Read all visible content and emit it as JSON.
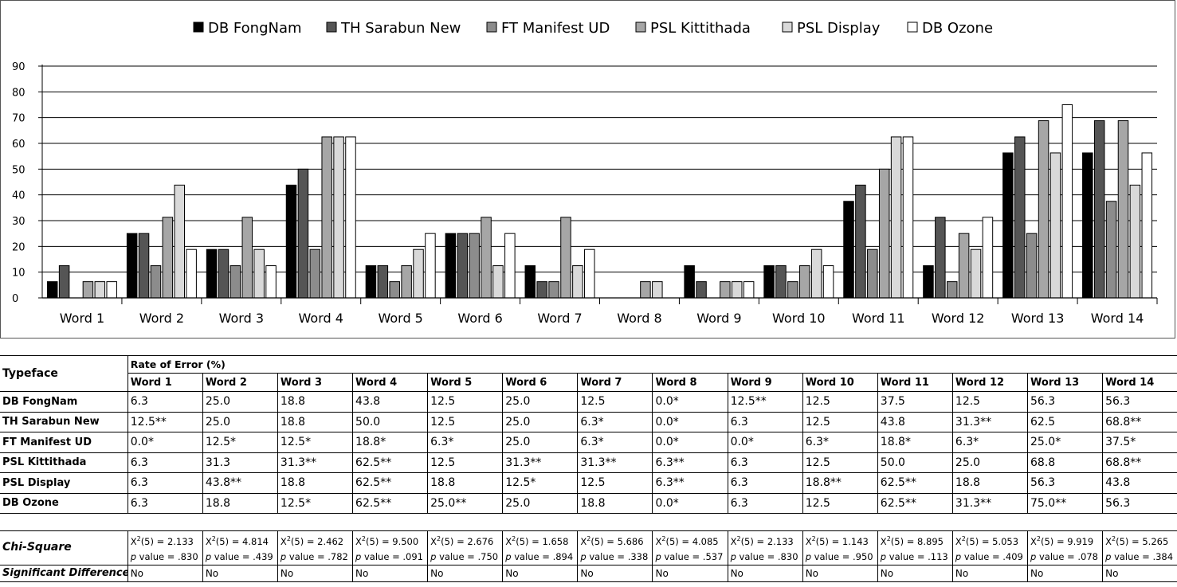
{
  "chart_data": {
    "type": "bar",
    "categories": [
      "Word 1",
      "Word 2",
      "Word 3",
      "Word 4",
      "Word 5",
      "Word 6",
      "Word 7",
      "Word 8",
      "Word 9",
      "Word 10",
      "Word 11",
      "Word 12",
      "Word 13",
      "Word 14"
    ],
    "series": [
      {
        "name": "DB FongNam",
        "color": "#000000",
        "values": [
          6.3,
          25.0,
          18.8,
          43.8,
          12.5,
          25.0,
          12.5,
          0.0,
          12.5,
          12.5,
          37.5,
          12.5,
          56.3,
          56.3
        ]
      },
      {
        "name": "TH Sarabun New",
        "color": "#555555",
        "values": [
          12.5,
          25.0,
          18.8,
          50.0,
          12.5,
          25.0,
          6.3,
          0.0,
          6.3,
          12.5,
          43.8,
          31.3,
          62.5,
          68.8
        ]
      },
      {
        "name": "FT Manifest UD",
        "color": "#8c8c8c",
        "values": [
          0.0,
          12.5,
          12.5,
          18.8,
          6.3,
          25.0,
          6.3,
          0.0,
          0.0,
          6.3,
          18.8,
          6.3,
          25.0,
          37.5
        ]
      },
      {
        "name": "PSL Kittithada",
        "color": "#a6a6a6",
        "values": [
          6.3,
          31.3,
          31.3,
          62.5,
          12.5,
          31.3,
          31.3,
          6.3,
          6.3,
          12.5,
          50.0,
          25.0,
          68.8,
          68.8
        ]
      },
      {
        "name": "PSL Display",
        "color": "#d9d9d9",
        "values": [
          6.3,
          43.8,
          18.8,
          62.5,
          18.8,
          12.5,
          12.5,
          6.3,
          6.3,
          18.8,
          62.5,
          18.8,
          56.3,
          43.8
        ]
      },
      {
        "name": "DB Ozone",
        "color": "#ffffff",
        "values": [
          6.3,
          18.8,
          12.5,
          62.5,
          25.0,
          25.0,
          18.8,
          0.0,
          6.3,
          12.5,
          62.5,
          31.3,
          75.0,
          56.3
        ]
      }
    ],
    "yticks": [
      "0",
      "10",
      "20",
      "30",
      "40",
      "50",
      "60",
      "70",
      "80",
      "90"
    ],
    "ylim": [
      0,
      90
    ],
    "grid": true,
    "legend": "top-center"
  },
  "table": {
    "typeface_header": "Typeface",
    "rate_header": "Rate of Error (%)",
    "words": [
      "Word 1",
      "Word 2",
      "Word 3",
      "Word 4",
      "Word 5",
      "Word 6",
      "Word 7",
      "Word 8",
      "Word 9",
      "Word 10",
      "Word 11",
      "Word 12",
      "Word 13",
      "Word 14"
    ],
    "rows": [
      {
        "name": "DB FongNam",
        "cells": [
          "6.3",
          "25.0",
          "18.8",
          "43.8",
          "12.5",
          "25.0",
          "12.5",
          "0.0*",
          "12.5**",
          "12.5",
          "37.5",
          "12.5",
          "56.3",
          "56.3"
        ]
      },
      {
        "name": "TH Sarabun New",
        "cells": [
          "12.5**",
          "25.0",
          "18.8",
          "50.0",
          "12.5",
          "25.0",
          "6.3*",
          "0.0*",
          "6.3",
          "12.5",
          "43.8",
          "31.3**",
          "62.5",
          "68.8**"
        ]
      },
      {
        "name": "FT Manifest UD",
        "cells": [
          "0.0*",
          "12.5*",
          "12.5*",
          "18.8*",
          "6.3*",
          "25.0",
          "6.3*",
          "0.0*",
          "0.0*",
          "6.3*",
          "18.8*",
          "6.3*",
          "25.0*",
          "37.5*"
        ]
      },
      {
        "name": "PSL Kittithada",
        "cells": [
          "6.3",
          "31.3",
          "31.3**",
          "62.5**",
          "12.5",
          "31.3**",
          "31.3**",
          "6.3**",
          "6.3",
          "12.5",
          "50.0",
          "25.0",
          "68.8",
          "68.8**"
        ]
      },
      {
        "name": "PSL Display",
        "cells": [
          "6.3",
          "43.8**",
          "18.8",
          "62.5**",
          "18.8",
          "12.5*",
          "12.5",
          "6.3**",
          "6.3",
          "18.8**",
          "62.5**",
          "18.8",
          "56.3",
          "43.8"
        ]
      },
      {
        "name": "DB Ozone",
        "cells": [
          "6.3",
          "18.8",
          "12.5*",
          "62.5**",
          "25.0**",
          "25.0",
          "18.8",
          "0.0*",
          "6.3",
          "12.5",
          "62.5**",
          "31.3**",
          "75.0**",
          "56.3"
        ]
      }
    ],
    "chi_label": "Chi-Square",
    "chi_prefix": "X",
    "chi_sup": "2",
    "chi_df": "(5) = ",
    "chi_values": [
      "2.133",
      "4.814",
      "2.462",
      "9.500",
      "2.676",
      "1.658",
      "5.686",
      "4.085",
      "2.133",
      "1.143",
      "8.895",
      "5.053",
      "9.919",
      "5.265"
    ],
    "p_label": "p",
    "p_prefix": " value = ",
    "p_values": [
      ".830",
      ".439",
      ".782",
      ".091",
      ".750",
      ".894",
      ".338",
      ".537",
      ".830",
      ".950",
      ".113",
      ".409",
      ".078",
      ".384"
    ],
    "sig_label": "Significant Difference",
    "sig_values": [
      "No",
      "No",
      "No",
      "No",
      "No",
      "No",
      "No",
      "No",
      "No",
      "No",
      "No",
      "No",
      "No",
      "No"
    ]
  }
}
